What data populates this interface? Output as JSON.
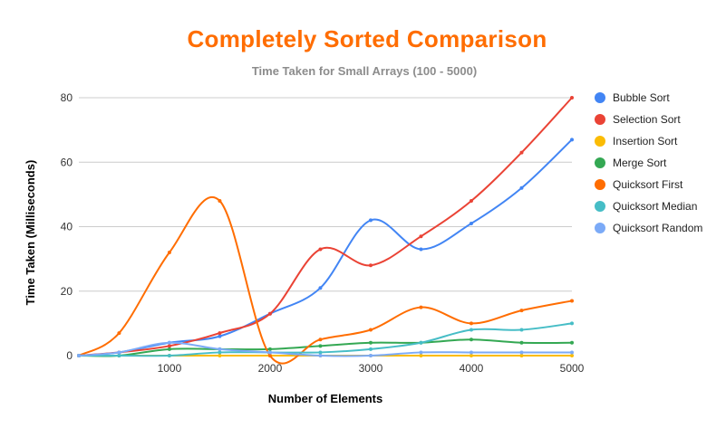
{
  "chart_data": {
    "type": "line",
    "title": "Completely Sorted Comparison",
    "subtitle": "Time Taken for Small Arrays (100 - 5000)",
    "xlabel": "Number of Elements",
    "ylabel": "Time Taken (Milliseconds)",
    "xlim": [
      100,
      5000
    ],
    "ylim": [
      0,
      80
    ],
    "xticks": [
      1000,
      2000,
      3000,
      4000,
      5000
    ],
    "yticks": [
      0,
      20,
      40,
      60,
      80
    ],
    "grid": "horizontal",
    "legend_position": "right",
    "smooth": true,
    "x": [
      100,
      500,
      1000,
      1500,
      2000,
      2500,
      3000,
      3500,
      4000,
      4500,
      5000
    ],
    "series": [
      {
        "name": "Bubble Sort",
        "color": "#4285f4",
        "values": [
          0,
          1,
          4,
          6,
          13,
          21,
          42,
          33,
          41,
          52,
          67
        ]
      },
      {
        "name": "Selection Sort",
        "color": "#ea4335",
        "values": [
          0,
          1,
          3,
          7,
          13,
          33,
          28,
          37,
          48,
          63,
          80
        ]
      },
      {
        "name": "Insertion Sort",
        "color": "#fbbc04",
        "values": [
          0,
          0,
          0,
          0,
          0,
          0,
          0,
          0,
          0,
          0,
          0
        ]
      },
      {
        "name": "Merge Sort",
        "color": "#34a853",
        "values": [
          0,
          0,
          2,
          2,
          2,
          3,
          4,
          4,
          5,
          4,
          4
        ]
      },
      {
        "name": "Quicksort First",
        "color": "#ff6d01",
        "values": [
          0,
          7,
          32,
          48,
          0,
          5,
          8,
          15,
          10,
          14,
          17
        ]
      },
      {
        "name": "Quicksort Median",
        "color": "#46bdc6",
        "values": [
          0,
          0,
          0,
          1,
          1,
          1,
          2,
          4,
          8,
          8,
          10
        ]
      },
      {
        "name": "Quicksort Random",
        "color": "#7baaf7",
        "values": [
          0,
          1,
          4,
          2,
          1,
          0,
          0,
          1,
          1,
          1,
          1
        ]
      }
    ]
  }
}
